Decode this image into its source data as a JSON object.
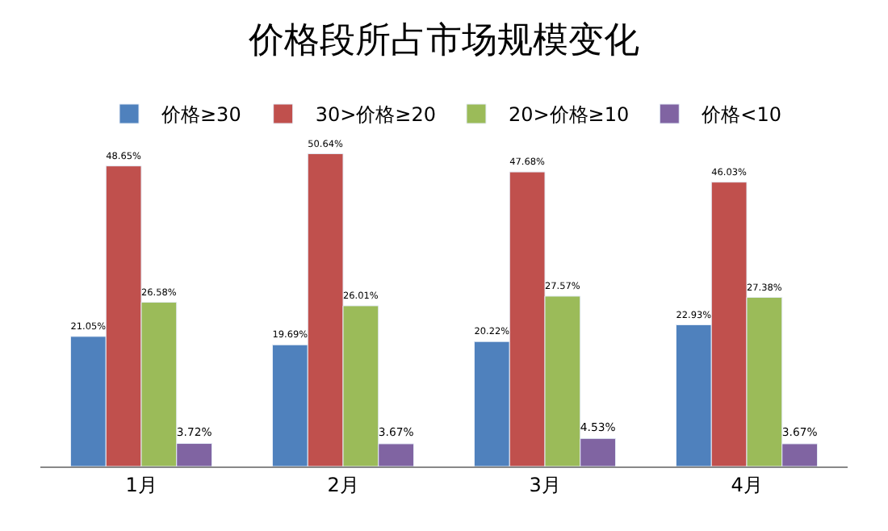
{
  "chart_data": {
    "type": "bar",
    "title": "价格段所占市场规模变化",
    "categories": [
      "1月",
      "2月",
      "3月",
      "4月"
    ],
    "legend": "top",
    "series": [
      {
        "name": "价格≥30",
        "color": "#4f81bd",
        "values": [
          21.05,
          19.69,
          20.22,
          22.93
        ],
        "value_labels": [
          "21.05%",
          "19.69%",
          "20.22%",
          "22.93%"
        ]
      },
      {
        "name": "30>价格≥20",
        "color": "#c0504d",
        "values": [
          48.65,
          50.64,
          47.68,
          46.03
        ],
        "value_labels": [
          "48.65%",
          "50.64%",
          "47.68%",
          "46.03%"
        ]
      },
      {
        "name": "20>价格≥10",
        "color": "#9bbb59",
        "values": [
          26.58,
          26.01,
          27.57,
          27.38
        ],
        "value_labels": [
          "26.58%",
          "26.01%",
          "27.57%",
          "27.38%"
        ]
      },
      {
        "name": "价格<10",
        "color": "#8064a2",
        "values": [
          3.72,
          3.67,
          4.53,
          3.67
        ],
        "value_labels": [
          "3.72%",
          "3.67%",
          "4.53%",
          "3.67%"
        ]
      }
    ]
  }
}
